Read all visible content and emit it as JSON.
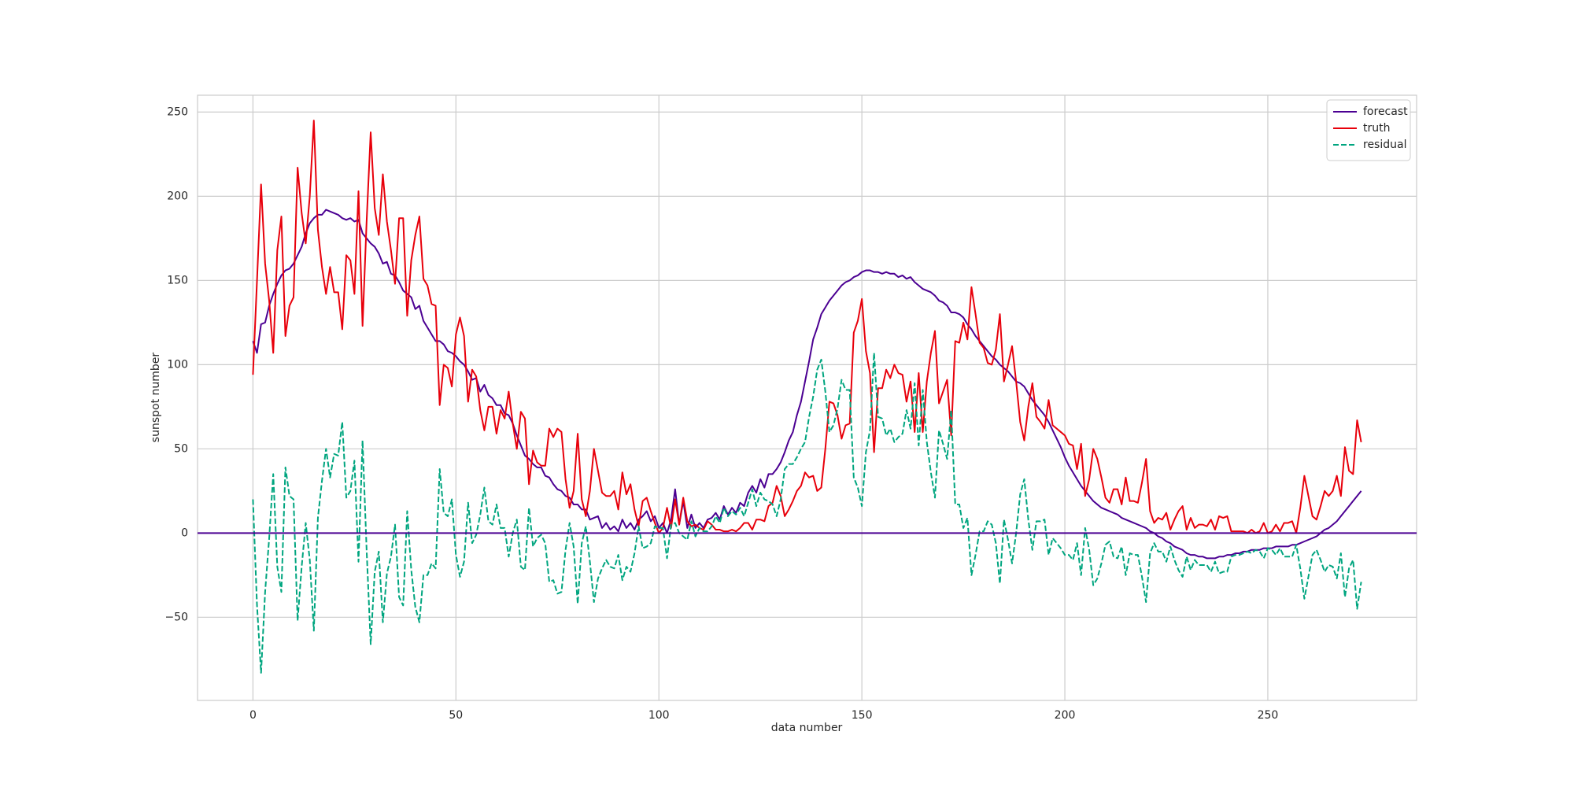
{
  "chart_data": {
    "type": "line",
    "xlabel": "data number",
    "ylabel": "sunspot number",
    "x": [
      0,
      1,
      2,
      3,
      4,
      5,
      6,
      7,
      8,
      9,
      10,
      11,
      12,
      13,
      14,
      15,
      16,
      17,
      18,
      19,
      20,
      21,
      22,
      23,
      24,
      25,
      26,
      27,
      28,
      29,
      30,
      31,
      32,
      33,
      34,
      35,
      36,
      37,
      38,
      39,
      40,
      41,
      42,
      43,
      44,
      45,
      46,
      47,
      48,
      49,
      50,
      51,
      52,
      53,
      54,
      55,
      56,
      57,
      58,
      59,
      60,
      61,
      62,
      63,
      64,
      65,
      66,
      67,
      68,
      69,
      70,
      71,
      72,
      73,
      74,
      75,
      76,
      77,
      78,
      79,
      80,
      81,
      82,
      83,
      84,
      85,
      86,
      87,
      88,
      89,
      90,
      91,
      92,
      93,
      94,
      95,
      96,
      97,
      98,
      99,
      100,
      101,
      102,
      103,
      104,
      105,
      106,
      107,
      108,
      109,
      110,
      111,
      112,
      113,
      114,
      115,
      116,
      117,
      118,
      119,
      120,
      121,
      122,
      123,
      124,
      125,
      126,
      127,
      128,
      129,
      130,
      131,
      132,
      133,
      134,
      135,
      136,
      137,
      138,
      139,
      140,
      141,
      142,
      143,
      144,
      145,
      146,
      147,
      148,
      149,
      150,
      151,
      152,
      153,
      154,
      155,
      156,
      157,
      158,
      159,
      160,
      161,
      162,
      163,
      164,
      165,
      166,
      167,
      168,
      169,
      170,
      171,
      172,
      173,
      174,
      175,
      176,
      177,
      178,
      179,
      180,
      181,
      182,
      183,
      184,
      185,
      186,
      187,
      188,
      189,
      190,
      191,
      192,
      193,
      194,
      195,
      196,
      197,
      198,
      199,
      200,
      201,
      202,
      203,
      204,
      205,
      206,
      207,
      208,
      209,
      210,
      211,
      212,
      213,
      214,
      215,
      216,
      217,
      218,
      219,
      220,
      221,
      222,
      223,
      224,
      225,
      226,
      227,
      228,
      229,
      230,
      231,
      232,
      233,
      234,
      235,
      236,
      237,
      238,
      239,
      240,
      241,
      242,
      243,
      244,
      245,
      246,
      247,
      248,
      249,
      250,
      251,
      252,
      253,
      254,
      255,
      256,
      257,
      258,
      259,
      260,
      261,
      262,
      263,
      264,
      265,
      266,
      267,
      268,
      269,
      270,
      271,
      272,
      273
    ],
    "series": [
      {
        "name": "forecast",
        "color": "#4b0092",
        "dash": false,
        "values": [
          114,
          107,
          124,
          125,
          135,
          142,
          148,
          153,
          156,
          157,
          160,
          165,
          170,
          178,
          184,
          187,
          189,
          189,
          192,
          191,
          190,
          189,
          187,
          186,
          187,
          185,
          186,
          178,
          175,
          172,
          170,
          166,
          160,
          161,
          154,
          153,
          149,
          144,
          142,
          140,
          133,
          135,
          126,
          122,
          118,
          114,
          114,
          112,
          108,
          107,
          105,
          102,
          100,
          96,
          91,
          92,
          84,
          88,
          82,
          80,
          76,
          76,
          71,
          70,
          65,
          58,
          52,
          46,
          44,
          41,
          39,
          39,
          34,
          33,
          29,
          26,
          25,
          22,
          21,
          17,
          17,
          14,
          14,
          8,
          9,
          10,
          3,
          6,
          2,
          4,
          1,
          8,
          3,
          6,
          2,
          8,
          10,
          13,
          7,
          10,
          3,
          6,
          0,
          8,
          26,
          5,
          19,
          3,
          11,
          3,
          6,
          3,
          8,
          9,
          12,
          8,
          16,
          11,
          15,
          12,
          18,
          16,
          24,
          28,
          24,
          32,
          27,
          35,
          35,
          38,
          42,
          48,
          55,
          60,
          70,
          78,
          90,
          102,
          115,
          122,
          130,
          134,
          138,
          141,
          144,
          147,
          149,
          150,
          152,
          153,
          155,
          156,
          156,
          155,
          155,
          154,
          155,
          154,
          154,
          152,
          153,
          151,
          152,
          149,
          147,
          145,
          144,
          143,
          141,
          138,
          137,
          135,
          131,
          131,
          130,
          128,
          124,
          121,
          117,
          114,
          111,
          108,
          105,
          103,
          100,
          98,
          96,
          93,
          90,
          89,
          87,
          83,
          79,
          76,
          73,
          70,
          66,
          61,
          56,
          51,
          45,
          40,
          36,
          32,
          28,
          25,
          22,
          19,
          17,
          15,
          14,
          13,
          12,
          11,
          9,
          8,
          7,
          6,
          5,
          4,
          3,
          1,
          0,
          -2,
          -3,
          -5,
          -6,
          -8,
          -9,
          -10,
          -12,
          -13,
          -13,
          -14,
          -14,
          -15,
          -15,
          -15,
          -14,
          -14,
          -13,
          -13,
          -12,
          -12,
          -11,
          -11,
          -10,
          -10,
          -10,
          -9,
          -9,
          -9,
          -8,
          -8,
          -8,
          -8,
          -7,
          -7,
          -6,
          -5,
          -4,
          -3,
          -2,
          0,
          2,
          3,
          5,
          7,
          10,
          13,
          16,
          19,
          22,
          25
        ]
      },
      {
        "name": "truth",
        "color": "#e8000b",
        "dash": false,
        "values": [
          94,
          150,
          207,
          160,
          138,
          107,
          168,
          188,
          117,
          135,
          140,
          217,
          190,
          172,
          200,
          245,
          180,
          158,
          142,
          158,
          143,
          143,
          121,
          165,
          162,
          142,
          203,
          123,
          185,
          238,
          193,
          177,
          213,
          185,
          168,
          148,
          187,
          187,
          129,
          162,
          177,
          188,
          151,
          147,
          136,
          135,
          76,
          100,
          98,
          87,
          118,
          128,
          117,
          78,
          97,
          93,
          73,
          61,
          75,
          75,
          59,
          73,
          68,
          84,
          65,
          50,
          72,
          68,
          29,
          49,
          42,
          40,
          40,
          62,
          57,
          62,
          60,
          32,
          15,
          25,
          59,
          20,
          10,
          25,
          50,
          37,
          24,
          22,
          22,
          25,
          14,
          36,
          23,
          29,
          14,
          4,
          19,
          21,
          13,
          6,
          0,
          3,
          15,
          3,
          20,
          5,
          21,
          7,
          4,
          5,
          3,
          2,
          7,
          5,
          2,
          2,
          1,
          1,
          2,
          1,
          3,
          6,
          6,
          2,
          8,
          8,
          7,
          16,
          18,
          28,
          22,
          10,
          14,
          19,
          25,
          28,
          36,
          33,
          34,
          25,
          27,
          50,
          78,
          77,
          70,
          56,
          64,
          65,
          119,
          126,
          139,
          108,
          95,
          48,
          86,
          86,
          97,
          92,
          100,
          95,
          94,
          78,
          90,
          60,
          95,
          60,
          90,
          107,
          120,
          77,
          84,
          91,
          58,
          114,
          113,
          125,
          115,
          146,
          130,
          113,
          110,
          101,
          100,
          109,
          130,
          90,
          100,
          111,
          90,
          66,
          55,
          75,
          89,
          69,
          66,
          62,
          79,
          64,
          62,
          60,
          58,
          53,
          52,
          38,
          53,
          22,
          32,
          50,
          44,
          33,
          21,
          18,
          26,
          26,
          17,
          33,
          19,
          19,
          18,
          30,
          44,
          13,
          6,
          9,
          8,
          12,
          2,
          8,
          13,
          16,
          2,
          9,
          3,
          5,
          5,
          4,
          8,
          2,
          10,
          9,
          10,
          1,
          1,
          1,
          1,
          0,
          2,
          0,
          1,
          6,
          0,
          1,
          5,
          1,
          6,
          6,
          7,
          0,
          15,
          34,
          22,
          10,
          8,
          16,
          25,
          22,
          25,
          34,
          22,
          51,
          37,
          35,
          67,
          54
        ]
      },
      {
        "name": "residual",
        "color": "#00a57f",
        "dash": true,
        "values": [
          20,
          -43,
          -83,
          -35,
          -3,
          35,
          -20,
          -35,
          39,
          22,
          20,
          -52,
          -20,
          6,
          -16,
          -58,
          9,
          31,
          50,
          33,
          47,
          46,
          66,
          21,
          25,
          43,
          -17,
          55,
          -10,
          -66,
          -23,
          -11,
          -53,
          -24,
          -14,
          5,
          -38,
          -43,
          13,
          -22,
          -44,
          -53,
          -25,
          -25,
          -18,
          -21,
          38,
          12,
          10,
          20,
          -13,
          -26,
          -17,
          18,
          -6,
          -1,
          11,
          27,
          7,
          5,
          17,
          3,
          3,
          -14,
          0,
          8,
          -20,
          -22,
          15,
          -8,
          -3,
          -1,
          -6,
          -29,
          -28,
          -36,
          -35,
          -10,
          6,
          -8,
          -42,
          -6,
          4,
          -17,
          -41,
          -27,
          -21,
          -16,
          -20,
          -21,
          -13,
          -28,
          -20,
          -23,
          -12,
          4,
          -9,
          -8,
          -6,
          4,
          3,
          3,
          -15,
          5,
          6,
          0,
          -2,
          -4,
          7,
          -2,
          3,
          1,
          1,
          4,
          10,
          6,
          15,
          10,
          13,
          11,
          15,
          10,
          18,
          26,
          16,
          24,
          20,
          19,
          17,
          10,
          20,
          38,
          41,
          41,
          45,
          50,
          54,
          69,
          81,
          97,
          103,
          84,
          60,
          64,
          74,
          91,
          85,
          85,
          33,
          27,
          16,
          48,
          61,
          107,
          69,
          68,
          58,
          62,
          54,
          57,
          59,
          73,
          62,
          89,
          52,
          85,
          54,
          36,
          21,
          61,
          53,
          44,
          73,
          17,
          17,
          3,
          9,
          -25,
          -13,
          1,
          1,
          7,
          5,
          -6,
          -30,
          8,
          -4,
          -18,
          0,
          23,
          32,
          8,
          -10,
          7,
          7,
          8,
          -13,
          -3,
          -6,
          -9,
          -13,
          -13,
          -16,
          -6,
          -25,
          3,
          -10,
          -31,
          -27,
          -18,
          -7,
          -5,
          -14,
          -15,
          -8,
          -25,
          -12,
          -13,
          -13,
          -26,
          -41,
          -12,
          -6,
          -11,
          -11,
          -17,
          -8,
          -16,
          -22,
          -26,
          -14,
          -22,
          -16,
          -19,
          -19,
          -19,
          -23,
          -17,
          -24,
          -23,
          -23,
          -14,
          -13,
          -13,
          -12,
          -11,
          -12,
          -10,
          -11,
          -15,
          -9,
          -10,
          -13,
          -9,
          -14,
          -14,
          -14,
          -7,
          -21,
          -39,
          -26,
          -13,
          -10,
          -16,
          -23,
          -19,
          -20,
          -27,
          -12,
          -38,
          -21,
          -16,
          -45,
          -29
        ]
      }
    ],
    "hline": {
      "y": 0,
      "color": "#4b0092"
    },
    "xlim": [
      -13.65,
      286.65
    ],
    "ylim": [
      -99.4,
      260
    ],
    "xticks": [
      0,
      50,
      100,
      150,
      200,
      250
    ],
    "yticks": [
      {
        "value": -50,
        "label": "−50"
      },
      0,
      50,
      100,
      150,
      200,
      250
    ],
    "grid": true,
    "legend": "upper right"
  }
}
